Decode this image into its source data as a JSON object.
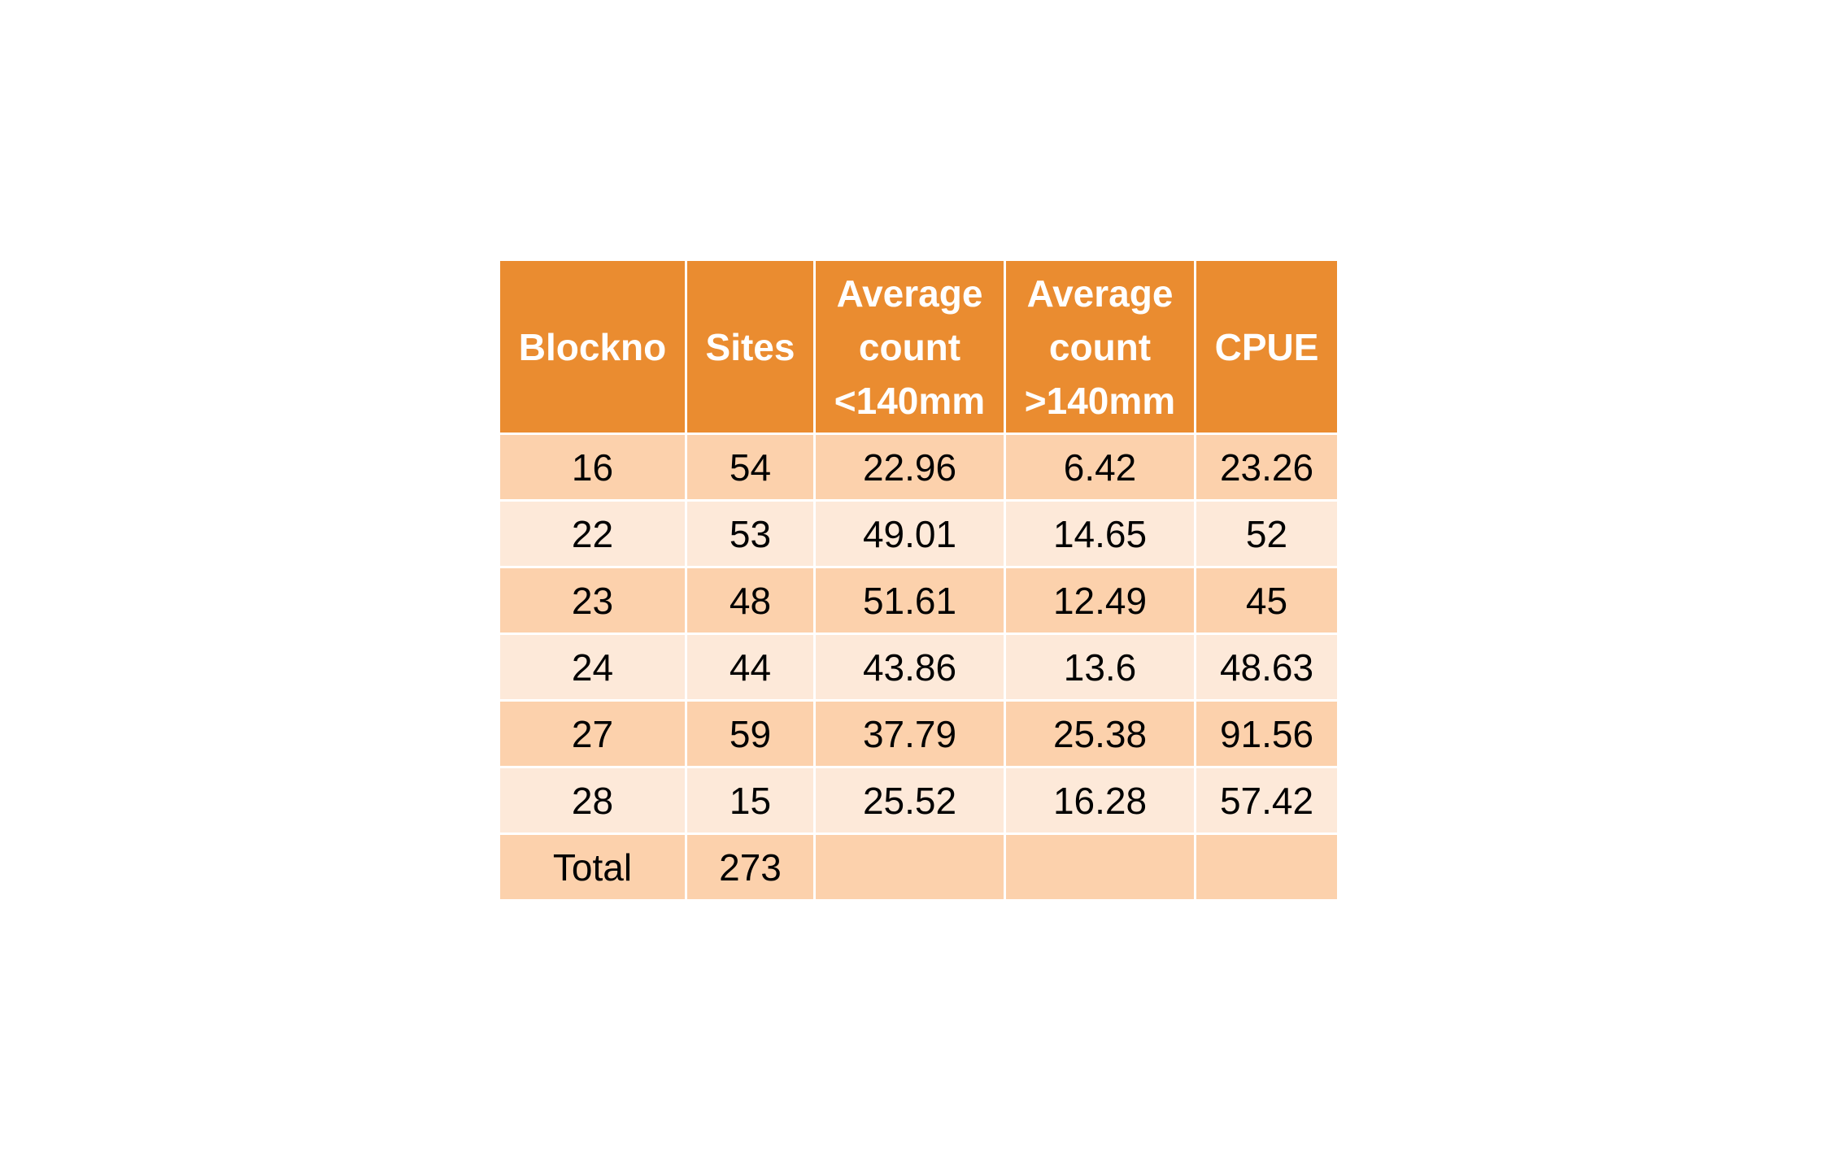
{
  "chart_data": {
    "type": "table",
    "header": {
      "col0": "Blockno",
      "col1": "Sites",
      "col2": {
        "l1": "Average",
        "l2": "count",
        "l3": "<140mm"
      },
      "col3": {
        "l1": "Average",
        "l2": "count",
        "l3": ">140mm"
      },
      "col4": "CPUE"
    },
    "columns": [
      "Blockno",
      "Sites",
      "Average count <140mm",
      "Average count >140mm",
      "CPUE"
    ],
    "rows": [
      [
        "16",
        "54",
        "22.96",
        "6.42",
        "23.26"
      ],
      [
        "22",
        "53",
        "49.01",
        "14.65",
        "52"
      ],
      [
        "23",
        "48",
        "51.61",
        "12.49",
        "45"
      ],
      [
        "24",
        "44",
        "43.86",
        "13.6",
        "48.63"
      ],
      [
        "27",
        "59",
        "37.79",
        "25.38",
        "91.56"
      ],
      [
        "28",
        "15",
        "25.52",
        "16.28",
        "57.42"
      ],
      [
        "Total",
        "273",
        "",
        "",
        ""
      ]
    ]
  },
  "colors": {
    "header_bg": "#ea8c30",
    "row_odd_bg": "#fcd1ac",
    "row_even_bg": "#fde9d9",
    "border": "#ffffff"
  }
}
